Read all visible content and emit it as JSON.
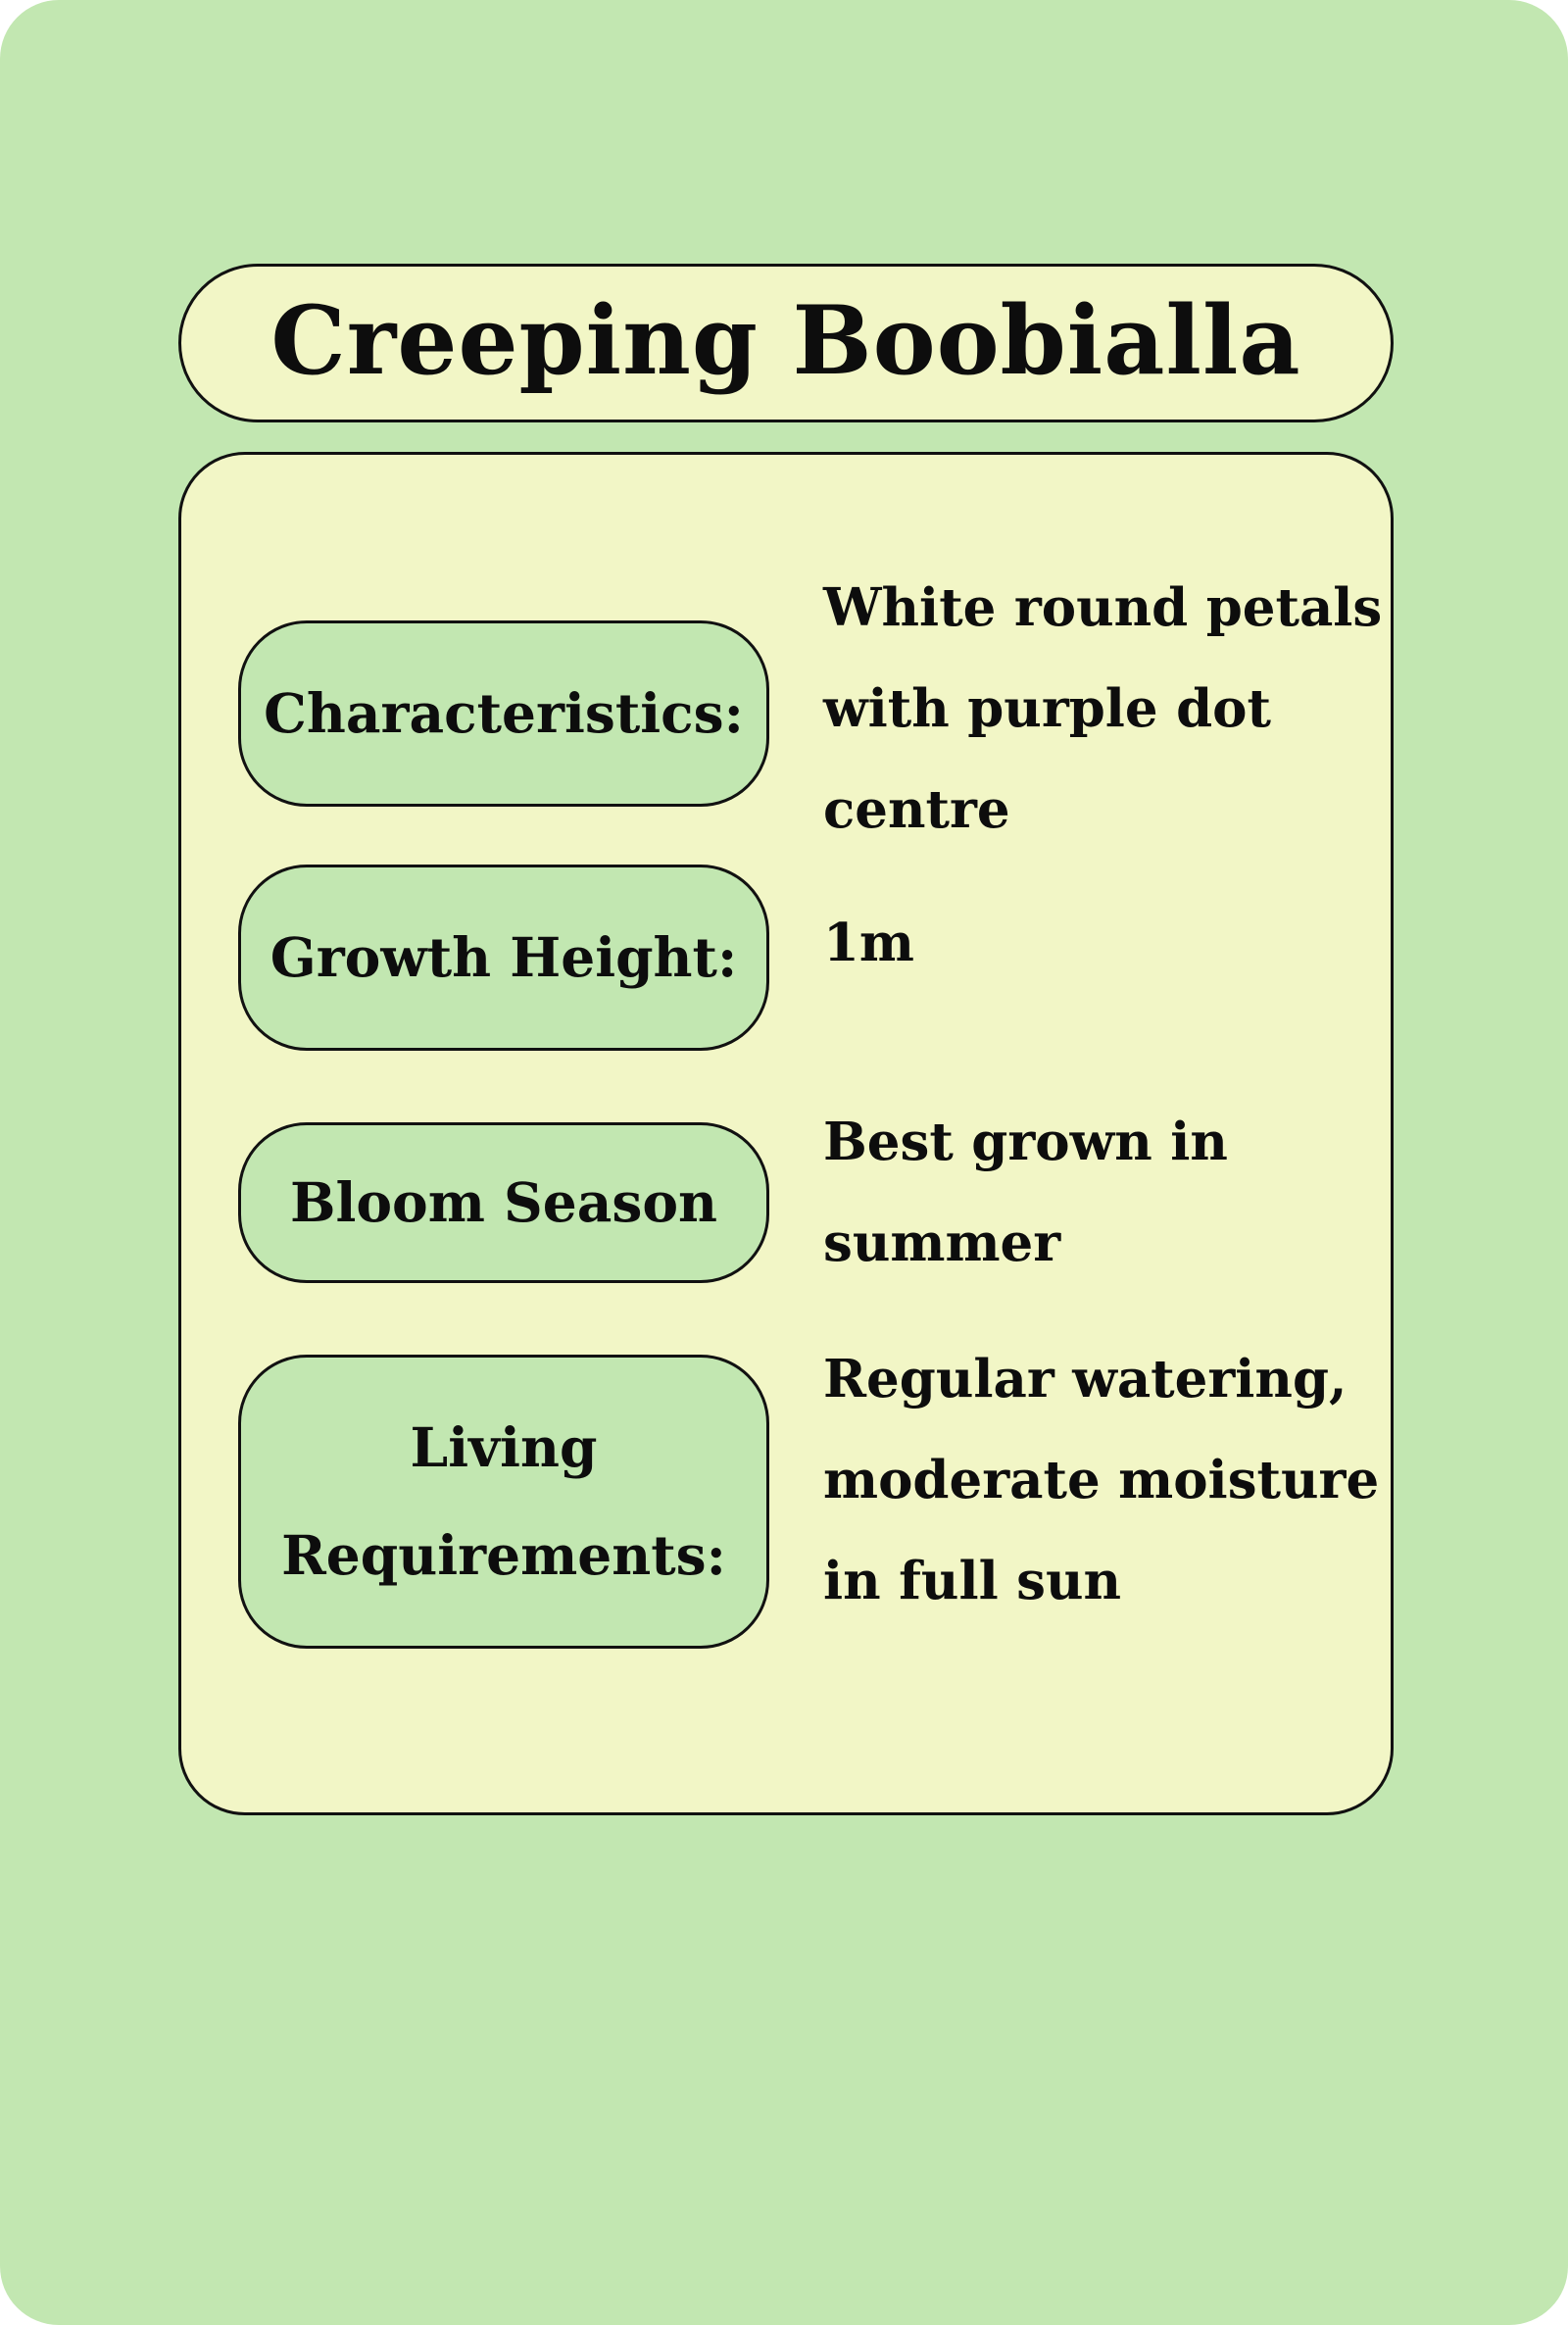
{
  "title": "Creeping Boobialla",
  "colors": {
    "background": "#c2e7b1",
    "panel": "#f2f6c6",
    "label_pill": "#c2e7b1",
    "outline": "#111111",
    "text": "#0d0d0d"
  },
  "rows": [
    {
      "label_lines": [
        "Characteristics:"
      ],
      "value_lines": [
        "White round petals",
        "with purple dot",
        "centre"
      ]
    },
    {
      "label_lines": [
        "Growth Height:"
      ],
      "value_lines": [
        "1m"
      ]
    },
    {
      "label_lines": [
        "Bloom Season"
      ],
      "value_lines": [
        "Best grown in",
        "summer"
      ]
    },
    {
      "label_lines": [
        "Living",
        "Requirements:"
      ],
      "value_lines": [
        "Regular watering,",
        "moderate moisture",
        "in full sun"
      ]
    }
  ]
}
